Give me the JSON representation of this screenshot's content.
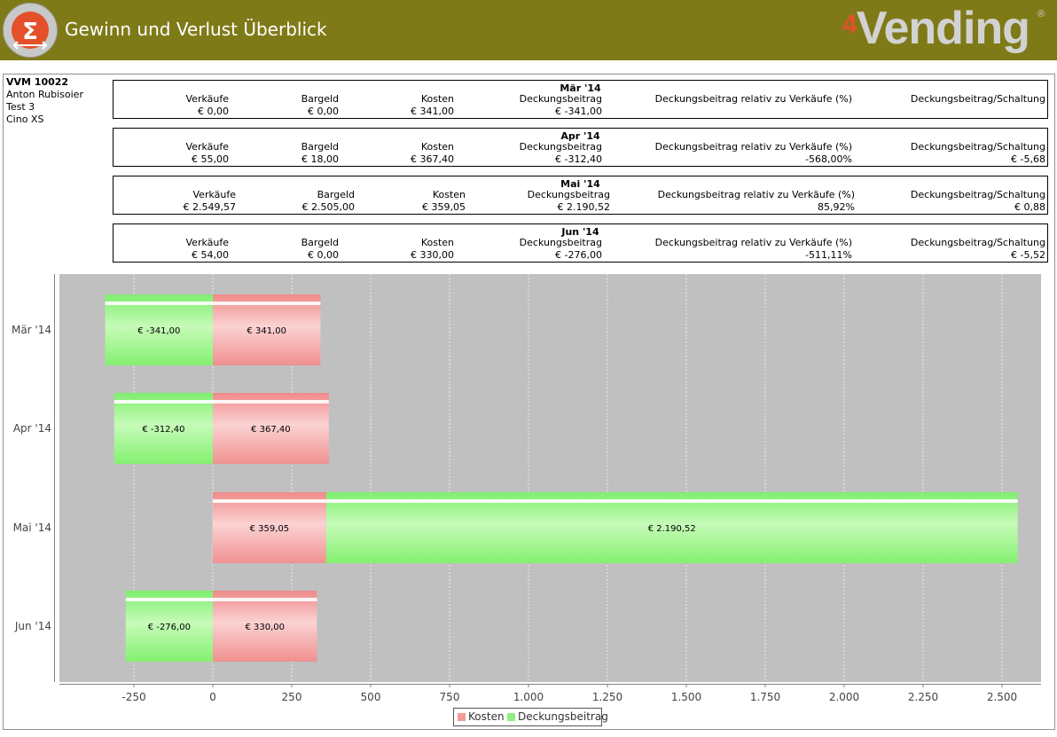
{
  "header": {
    "title": "Gewinn und Verlust Überblick",
    "brand_number": "4",
    "brand_name": "Vending",
    "brand_reg": "®"
  },
  "info": {
    "machine": "VVM 10022",
    "person": "Anton Rubisoier",
    "test": "Test  3",
    "model": "Cino XS"
  },
  "month_tables": [
    {
      "title": "Mär '14",
      "headers": [
        "Verkäufe",
        "Bargeld",
        "Kosten",
        "Deckungsbeitrag",
        "Deckungsbeitrag relativ zu Verkäufe (%)",
        "Deckungsbeitrag/Schaltung"
      ],
      "values": [
        "€ 0,00",
        "€ 0,00",
        "€ 341,00",
        "€ -341,00",
        "",
        ""
      ]
    },
    {
      "title": "Apr '14",
      "headers": [
        "Verkäufe",
        "Bargeld",
        "Kosten",
        "Deckungsbeitrag",
        "Deckungsbeitrag relativ zu Verkäufe (%)",
        "Deckungsbeitrag/Schaltung"
      ],
      "values": [
        "€ 55,00",
        "€ 18,00",
        "€ 367,40",
        "€ -312,40",
        "-568,00%",
        "€ -5,68"
      ]
    },
    {
      "title": "Mai '14",
      "headers": [
        "Verkäufe",
        "Bargeld",
        "Kosten",
        "Deckungsbeitrag",
        "Deckungsbeitrag relativ zu Verkäufe (%)",
        "Deckungsbeitrag/Schaltung"
      ],
      "values": [
        "€ 2.549,57",
        "€ 2.505,00",
        "€ 359,05",
        "€ 2.190,52",
        "85,92%",
        "€ 0,88"
      ]
    },
    {
      "title": "Jun '14",
      "headers": [
        "Verkäufe",
        "Bargeld",
        "Kosten",
        "Deckungsbeitrag",
        "Deckungsbeitrag relativ zu Verkäufe (%)",
        "Deckungsbeitrag/Schaltung"
      ],
      "values": [
        "€ 54,00",
        "€ 0,00",
        "€ 330,00",
        "€ -276,00",
        "-511,11%",
        "€ -5,52"
      ]
    }
  ],
  "chart_data": {
    "type": "bar",
    "orientation": "horizontal",
    "stacked": true,
    "categories": [
      "Mär '14",
      "Apr '14",
      "Mai '14",
      "Jun '14"
    ],
    "series": [
      {
        "name": "Kosten",
        "color": "#f09a9a",
        "values": [
          341.0,
          367.4,
          359.05,
          330.0
        ],
        "labels": [
          "€ 341,00",
          "€ 367,40",
          "€ 359,05",
          "€ 330,00"
        ]
      },
      {
        "name": "Deckungsbeitrag",
        "color": "#8ef07e",
        "values": [
          -341.0,
          -312.4,
          2190.52,
          -276.0
        ],
        "labels": [
          "€ -341,00",
          "€ -312,40",
          "€ 2.190,52",
          "€ -276,00"
        ]
      }
    ],
    "xlim": [
      -490,
      2630
    ],
    "xticks": [
      -250,
      0,
      250,
      500,
      750,
      1000,
      1250,
      1500,
      1750,
      2000,
      2250,
      2500
    ],
    "xtick_labels": [
      "-250",
      "0",
      "250",
      "500",
      "750",
      "1.000",
      "1.250",
      "1.500",
      "1.750",
      "2.000",
      "2.250",
      "2.500"
    ],
    "grid": true,
    "legend": "bottom-center"
  }
}
